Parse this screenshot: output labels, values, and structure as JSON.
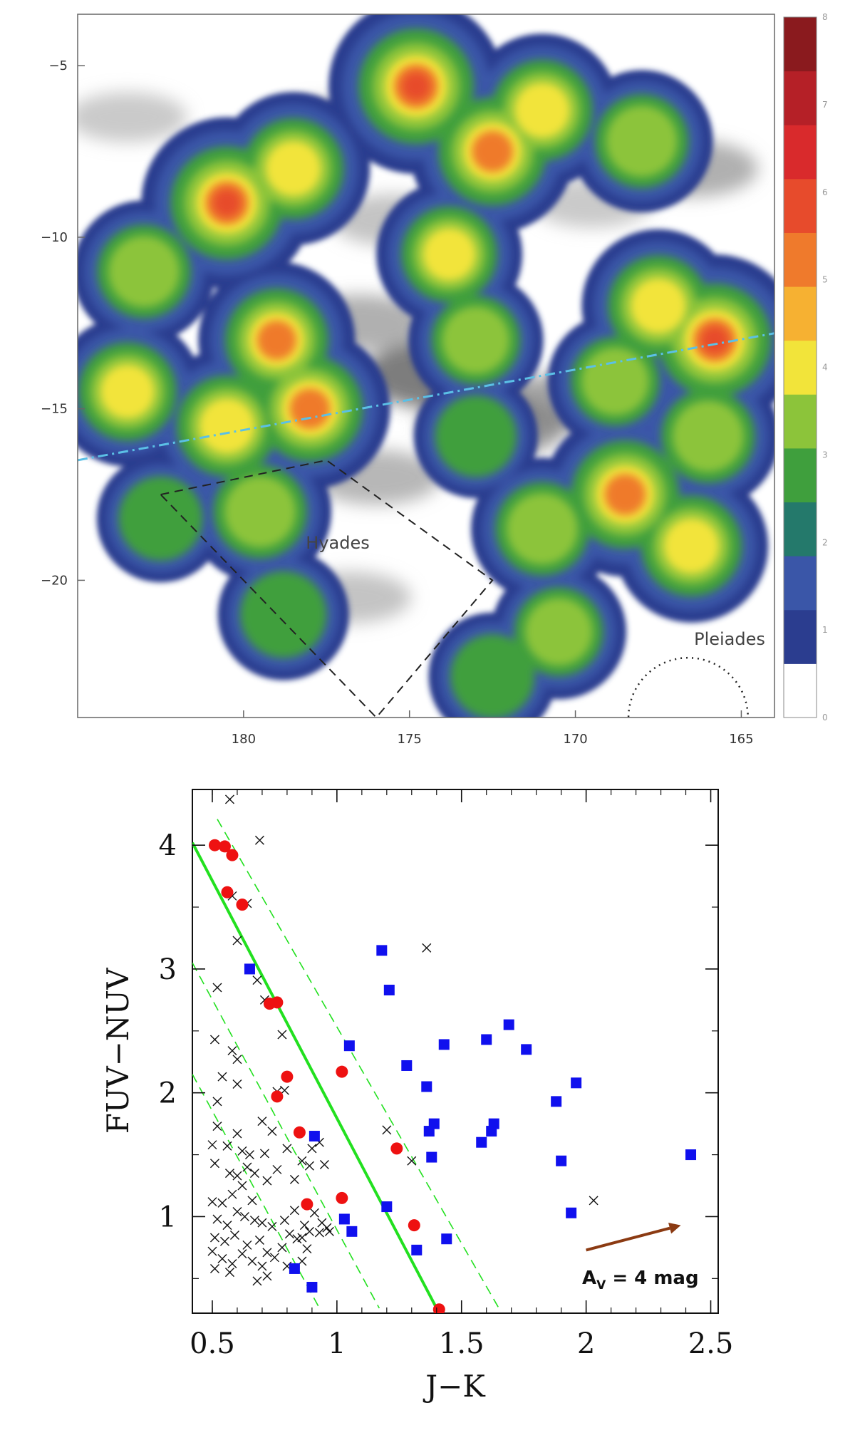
{
  "chart_data": [
    {
      "type": "heatmap",
      "xlabel": "",
      "ylabel": "",
      "xlim": [
        185,
        164
      ],
      "ylim": [
        -24,
        -3.5
      ],
      "x_ticks": [
        "180",
        "175",
        "170",
        "165"
      ],
      "y_ticks": [
        "-5",
        "-10",
        "-15",
        "-20"
      ],
      "colorbar": {
        "ticks": [
          "0",
          "1",
          "2",
          "3",
          "4",
          "5",
          "6",
          "7",
          "8"
        ],
        "colors": [
          "#ffffff",
          "#2b3d8f",
          "#3a56a8",
          "#24796b",
          "#3f9f3d",
          "#8cc43a",
          "#f2e43a",
          "#f6b132",
          "#ef7a2c",
          "#e74b2c",
          "#d92a2c",
          "#b52027",
          "#8a1a1e"
        ]
      },
      "annotations": [
        "Hyades",
        "Pleiades"
      ],
      "galactic_plane": [
        [
          185,
          -16.5
        ],
        [
          164,
          -12.8
        ]
      ],
      "blobs": [
        {
          "x": 172.5,
          "y": -7.5,
          "level": 0.85
        },
        {
          "x": 174.8,
          "y": -5.6,
          "level": 1.0
        },
        {
          "x": 171.0,
          "y": -6.3,
          "level": 0.7
        },
        {
          "x": 168.0,
          "y": -7.2,
          "level": 0.55
        },
        {
          "x": 173.8,
          "y": -10.5,
          "level": 0.6
        },
        {
          "x": 173.0,
          "y": -13.0,
          "level": 0.45
        },
        {
          "x": 180.5,
          "y": -9.0,
          "level": 0.95
        },
        {
          "x": 178.5,
          "y": -8.0,
          "level": 0.7
        },
        {
          "x": 183.0,
          "y": -11.0,
          "level": 0.55
        },
        {
          "x": 179.0,
          "y": -13.0,
          "level": 0.75
        },
        {
          "x": 183.5,
          "y": -14.5,
          "level": 0.65
        },
        {
          "x": 180.5,
          "y": -15.5,
          "level": 0.7
        },
        {
          "x": 178.0,
          "y": -15.0,
          "level": 0.8
        },
        {
          "x": 179.5,
          "y": -18.0,
          "level": 0.55
        },
        {
          "x": 178.8,
          "y": -21.0,
          "level": 0.4
        },
        {
          "x": 182.5,
          "y": -18.2,
          "level": 0.35
        },
        {
          "x": 165.8,
          "y": -13.0,
          "level": 0.95
        },
        {
          "x": 167.5,
          "y": -12.0,
          "level": 0.7
        },
        {
          "x": 166.0,
          "y": -15.8,
          "level": 0.55
        },
        {
          "x": 168.5,
          "y": -17.5,
          "level": 0.85
        },
        {
          "x": 166.5,
          "y": -19.0,
          "level": 0.7
        },
        {
          "x": 171.0,
          "y": -18.5,
          "level": 0.55
        },
        {
          "x": 170.5,
          "y": -21.5,
          "level": 0.45
        },
        {
          "x": 172.5,
          "y": -22.8,
          "level": 0.35
        },
        {
          "x": 168.8,
          "y": -14.2,
          "level": 0.45
        },
        {
          "x": 173.0,
          "y": -15.8,
          "level": 0.3
        }
      ],
      "dust": [
        {
          "x": 174.0,
          "y": -14.0,
          "level": 0.9
        },
        {
          "x": 172.5,
          "y": -15.5,
          "level": 0.7
        },
        {
          "x": 176.5,
          "y": -12.5,
          "level": 0.5
        },
        {
          "x": 170.0,
          "y": -14.8,
          "level": 0.6
        },
        {
          "x": 177.5,
          "y": -6.8,
          "level": 0.45
        },
        {
          "x": 166.5,
          "y": -8.0,
          "level": 0.5
        },
        {
          "x": 175.5,
          "y": -9.5,
          "level": 0.35
        },
        {
          "x": 176.8,
          "y": -20.5,
          "level": 0.35
        },
        {
          "x": 183.5,
          "y": -6.5,
          "level": 0.3
        },
        {
          "x": 169.5,
          "y": -9.0,
          "level": 0.3
        },
        {
          "x": 176.0,
          "y": -17.0,
          "level": 0.45
        }
      ],
      "hyades_box": [
        [
          182.5,
          -17.5
        ],
        [
          177.5,
          -16.5
        ],
        [
          172.5,
          -20.0
        ],
        [
          176.0,
          -24.0
        ]
      ],
      "pleiades_circle": {
        "x": 166.6,
        "y": -24.0,
        "r": 1.8
      }
    },
    {
      "type": "scatter",
      "xlabel": "J−K",
      "ylabel": "FUV−NUV",
      "xlim": [
        0.42,
        2.53
      ],
      "ylim": [
        0.22,
        4.45
      ],
      "x_ticks": [
        0.5,
        1.0,
        1.5,
        2.0,
        2.5
      ],
      "x_tick_labels": [
        "0.5",
        "1",
        "1.5",
        "2",
        "2.5"
      ],
      "y_ticks": [
        1,
        2,
        3,
        4
      ],
      "y_tick_labels": [
        "1",
        "2",
        "3",
        "4"
      ],
      "series": [
        {
          "marker": "circle",
          "color": "#ee1111",
          "points": [
            [
              0.51,
              4.0
            ],
            [
              0.55,
              3.99
            ],
            [
              0.58,
              3.92
            ],
            [
              0.56,
              3.62
            ],
            [
              0.62,
              3.52
            ],
            [
              0.73,
              2.72
            ],
            [
              0.76,
              2.73
            ],
            [
              0.8,
              2.13
            ],
            [
              0.76,
              1.97
            ],
            [
              0.85,
              1.68
            ],
            [
              1.02,
              2.17
            ],
            [
              0.88,
              1.1
            ],
            [
              1.02,
              1.15
            ],
            [
              1.24,
              1.55
            ],
            [
              1.31,
              0.93
            ],
            [
              1.41,
              0.25
            ]
          ]
        },
        {
          "marker": "square",
          "color": "#1010ee",
          "points": [
            [
              0.65,
              3.0
            ],
            [
              0.91,
              1.65
            ],
            [
              0.83,
              0.58
            ],
            [
              0.9,
              0.43
            ],
            [
              1.03,
              0.98
            ],
            [
              1.06,
              0.88
            ],
            [
              1.18,
              3.15
            ],
            [
              1.21,
              2.83
            ],
            [
              1.2,
              1.08
            ],
            [
              1.05,
              2.38
            ],
            [
              1.28,
              2.22
            ],
            [
              1.36,
              2.05
            ],
            [
              1.37,
              1.69
            ],
            [
              1.39,
              1.75
            ],
            [
              1.38,
              1.48
            ],
            [
              1.43,
              2.39
            ],
            [
              1.32,
              0.73
            ],
            [
              1.44,
              0.82
            ],
            [
              1.58,
              1.6
            ],
            [
              1.6,
              2.43
            ],
            [
              1.62,
              1.69
            ],
            [
              1.63,
              1.75
            ],
            [
              1.69,
              2.55
            ],
            [
              1.76,
              2.35
            ],
            [
              1.88,
              1.93
            ],
            [
              1.9,
              1.45
            ],
            [
              1.94,
              1.03
            ],
            [
              1.96,
              2.08
            ],
            [
              2.42,
              1.5
            ]
          ]
        },
        {
          "marker": "x",
          "color": "#111111",
          "points": [
            [
              0.57,
              4.37
            ],
            [
              0.69,
              4.04
            ],
            [
              0.58,
              3.59
            ],
            [
              0.64,
              3.53
            ],
            [
              0.6,
              3.23
            ],
            [
              0.52,
              2.85
            ],
            [
              0.68,
              2.91
            ],
            [
              0.71,
              2.75
            ],
            [
              0.51,
              2.43
            ],
            [
              0.58,
              2.34
            ],
            [
              0.6,
              2.27
            ],
            [
              0.78,
              2.47
            ],
            [
              0.54,
              2.13
            ],
            [
              0.6,
              2.07
            ],
            [
              0.52,
              1.93
            ],
            [
              0.7,
              1.77
            ],
            [
              0.76,
              2.01
            ],
            [
              0.79,
              2.02
            ],
            [
              0.52,
              1.73
            ],
            [
              0.6,
              1.67
            ],
            [
              0.5,
              1.58
            ],
            [
              0.56,
              1.57
            ],
            [
              0.62,
              1.53
            ],
            [
              0.65,
              1.5
            ],
            [
              0.71,
              1.51
            ],
            [
              0.74,
              1.69
            ],
            [
              0.8,
              1.55
            ],
            [
              0.86,
              1.45
            ],
            [
              0.9,
              1.55
            ],
            [
              0.93,
              1.6
            ],
            [
              0.51,
              1.43
            ],
            [
              0.57,
              1.35
            ],
            [
              0.6,
              1.33
            ],
            [
              0.64,
              1.4
            ],
            [
              0.67,
              1.35
            ],
            [
              0.72,
              1.29
            ],
            [
              0.76,
              1.38
            ],
            [
              0.83,
              1.3
            ],
            [
              0.89,
              1.41
            ],
            [
              0.95,
              1.42
            ],
            [
              0.5,
              1.12
            ],
            [
              0.54,
              1.11
            ],
            [
              0.58,
              1.18
            ],
            [
              0.62,
              1.25
            ],
            [
              0.66,
              1.13
            ],
            [
              0.6,
              1.04
            ],
            [
              0.52,
              0.98
            ],
            [
              0.56,
              0.93
            ],
            [
              0.63,
              1.0
            ],
            [
              0.67,
              0.97
            ],
            [
              0.7,
              0.95
            ],
            [
              0.74,
              0.92
            ],
            [
              0.79,
              0.97
            ],
            [
              0.83,
              1.05
            ],
            [
              0.87,
              0.93
            ],
            [
              0.91,
              1.03
            ],
            [
              0.94,
              0.95
            ],
            [
              0.97,
              0.88
            ],
            [
              0.51,
              0.83
            ],
            [
              0.55,
              0.8
            ],
            [
              0.59,
              0.85
            ],
            [
              0.64,
              0.77
            ],
            [
              0.69,
              0.81
            ],
            [
              0.72,
              0.71
            ],
            [
              0.78,
              0.75
            ],
            [
              0.81,
              0.86
            ],
            [
              0.84,
              0.82
            ],
            [
              0.88,
              0.74
            ],
            [
              0.5,
              0.72
            ],
            [
              0.54,
              0.66
            ],
            [
              0.58,
              0.62
            ],
            [
              0.62,
              0.7
            ],
            [
              0.66,
              0.64
            ],
            [
              0.7,
              0.6
            ],
            [
              0.75,
              0.67
            ],
            [
              0.8,
              0.6
            ],
            [
              0.86,
              0.64
            ],
            [
              0.51,
              0.58
            ],
            [
              0.57,
              0.55
            ],
            [
              0.68,
              0.48
            ],
            [
              0.72,
              0.52
            ],
            [
              0.86,
              0.83
            ],
            [
              1.2,
              1.7
            ],
            [
              1.36,
              3.17
            ],
            [
              1.3,
              1.45
            ],
            [
              2.03,
              1.13
            ],
            [
              0.89,
              0.88
            ],
            [
              0.93,
              0.87
            ],
            [
              0.96,
              0.91
            ]
          ]
        }
      ],
      "solid_line": [
        [
          0.42,
          4.02
        ],
        [
          1.4,
          0.26
        ]
      ],
      "dashed_lines": [
        [
          [
            0.52,
            4.21
          ],
          [
            1.65,
            0.26
          ]
        ],
        [
          [
            0.42,
            3.05
          ],
          [
            1.17,
            0.26
          ]
        ],
        [
          [
            0.42,
            2.15
          ],
          [
            0.93,
            0.26
          ]
        ]
      ],
      "arrow": {
        "from": [
          2.0,
          0.73
        ],
        "to": [
          2.38,
          0.93
        ]
      },
      "arrow_label": {
        "main": "A",
        "sub": "V",
        "rest": " = 4 mag"
      }
    }
  ]
}
